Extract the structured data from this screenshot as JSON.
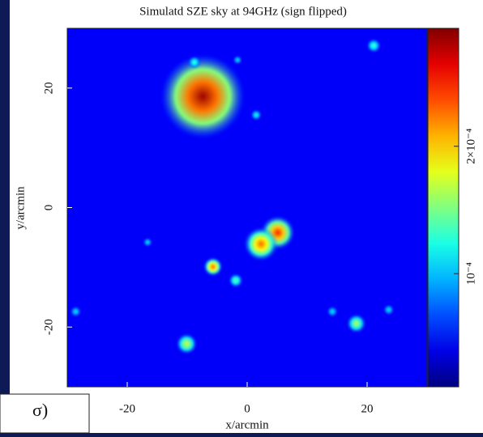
{
  "chart_data": {
    "type": "skymap",
    "title": "Simulatd SZE sky at 94GHz (sign flipped)",
    "xlabel": "x/arcmin",
    "ylabel": "y/arcmin",
    "xlim": [
      -30,
      30
    ],
    "ylim": [
      -30,
      30
    ],
    "xticks": [
      -20,
      0,
      20
    ],
    "yticks": [
      -20,
      0,
      20
    ],
    "clim": [
      5.4e-05,
      0.00038
    ],
    "log_color": true,
    "colormap": "jet",
    "cticks": [
      {
        "value": 0.0001,
        "label": "10⁻⁴"
      },
      {
        "value": 0.0002,
        "label": "2×10⁻⁴"
      }
    ],
    "sources": [
      {
        "x": -7.4,
        "y": 18.6,
        "peak": 0.00036,
        "radius": 5
      },
      {
        "x": 5.1,
        "y": -4.2,
        "peak": 0.00029,
        "radius": 2
      },
      {
        "x": 2.3,
        "y": -6.1,
        "peak": 0.00025,
        "radius": 2
      },
      {
        "x": -5.7,
        "y": -9.9,
        "peak": 0.00026,
        "radius": 1.1
      },
      {
        "x": -1.9,
        "y": -12.2,
        "peak": 0.00014,
        "radius": 0.8
      },
      {
        "x": -10.1,
        "y": -22.8,
        "peak": 0.00017,
        "radius": 1.2
      },
      {
        "x": 18.2,
        "y": -19.4,
        "peak": 0.00016,
        "radius": 1.1
      },
      {
        "x": 21.1,
        "y": 27.1,
        "peak": 0.00013,
        "radius": 0.8
      },
      {
        "x": -8.8,
        "y": 24.3,
        "peak": 0.00013,
        "radius": 0.7
      },
      {
        "x": 1.5,
        "y": 15.5,
        "peak": 0.00012,
        "radius": 0.6
      },
      {
        "x": -16.6,
        "y": -5.8,
        "peak": 0.00011,
        "radius": 0.5
      },
      {
        "x": -28.6,
        "y": -17.4,
        "peak": 0.00011,
        "radius": 0.6
      },
      {
        "x": 14.2,
        "y": -17.4,
        "peak": 0.00011,
        "radius": 0.6
      },
      {
        "x": 23.6,
        "y": -17.1,
        "peak": 0.00011,
        "radius": 0.6
      },
      {
        "x": -1.6,
        "y": 24.7,
        "peak": 0.00011,
        "radius": 0.5
      }
    ]
  },
  "overlay_text": "σ)"
}
